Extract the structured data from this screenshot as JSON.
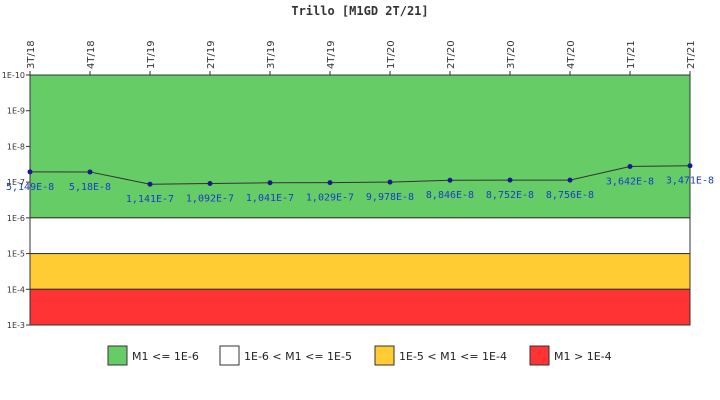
{
  "chart_data": {
    "type": "line",
    "title": "Trillo [M1GD 2T/21]",
    "xlabel": "",
    "ylabel": "",
    "y_scale": "log",
    "y_reversed": true,
    "ylim": [
      1e-10,
      0.001
    ],
    "y_ticks": [
      "1E-10",
      "1E-9",
      "1E-8",
      "1E-7",
      "1E-6",
      "1E-5",
      "1E-4",
      "1E-3"
    ],
    "categories": [
      "3T/18",
      "4T/18",
      "1T/19",
      "2T/19",
      "3T/19",
      "4T/19",
      "1T/20",
      "2T/20",
      "3T/20",
      "4T/20",
      "1T/21",
      "2T/21"
    ],
    "series": [
      {
        "values": [
          5.149e-08,
          5.18e-08,
          1.141e-07,
          1.092e-07,
          1.041e-07,
          1.029e-07,
          9.978e-08,
          8.846e-08,
          8.752e-08,
          8.756e-08,
          3.642e-08,
          3.471e-08
        ],
        "labels": [
          "5,149E-8",
          "5,18E-8",
          "1,141E-7",
          "1,092E-7",
          "1,041E-7",
          "1,029E-7",
          "9,978E-8",
          "8,846E-8",
          "8,752E-8",
          "8,756E-8",
          "3,642E-8",
          "3,471E-8"
        ],
        "color": "#1a1a8c"
      }
    ],
    "bands": [
      {
        "from": 1e-10,
        "to": 1e-06,
        "color": "#66cc66"
      },
      {
        "from": 1e-06,
        "to": 1e-05,
        "color": "#ffffff"
      },
      {
        "from": 1e-05,
        "to": 0.0001,
        "color": "#ffcc33"
      },
      {
        "from": 0.0001,
        "to": 0.001,
        "color": "#ff3333"
      }
    ],
    "legend": {
      "placement": "bottom",
      "entries": [
        {
          "label": "M1 <= 1E-6",
          "color": "#66cc66"
        },
        {
          "label": "1E-6 < M1 <= 1E-5",
          "color": "#ffffff"
        },
        {
          "label": "1E-5 < M1 <= 1E-4",
          "color": "#ffcc33"
        },
        {
          "label": "M1 > 1E-4",
          "color": "#ff3333"
        }
      ]
    },
    "grid": false
  }
}
